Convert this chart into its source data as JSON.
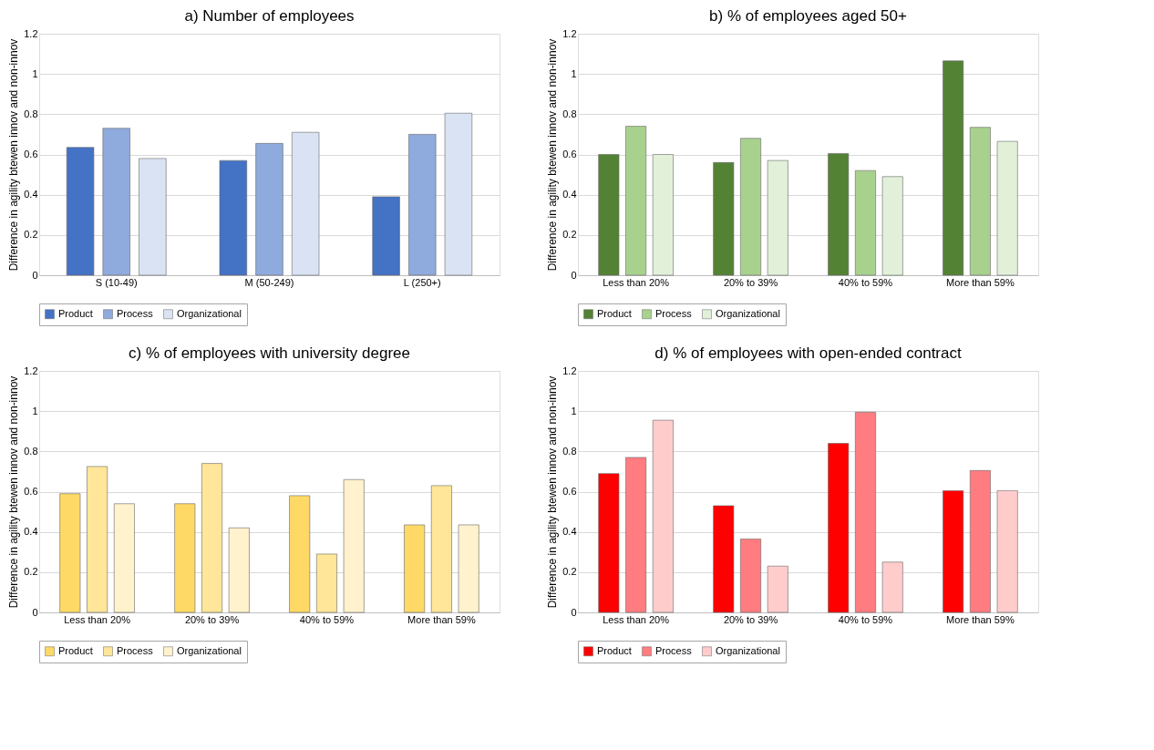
{
  "chart_data": [
    {
      "type": "bar",
      "title": "a) Number of employees",
      "ylabel": "Difference in agility btewen innov  and non-innov",
      "categories": [
        "S (10-49)",
        "M (50-249)",
        "L (250+)"
      ],
      "series": [
        {
          "name": "Product",
          "color": "#4472c4",
          "values": [
            0.635,
            0.57,
            0.39
          ]
        },
        {
          "name": "Process",
          "color": "#8faadc",
          "values": [
            0.73,
            0.655,
            0.7
          ]
        },
        {
          "name": "Organizational",
          "color": "#dae3f3",
          "values": [
            0.58,
            0.71,
            0.805
          ]
        }
      ],
      "ylim": [
        0,
        1.2
      ],
      "yticks": [
        0,
        0.2,
        0.4,
        0.6,
        0.8,
        1,
        1.2
      ],
      "grid": "y",
      "legend": "bottom"
    },
    {
      "type": "bar",
      "title": "b) % of employees aged 50+",
      "ylabel": "Difference in agility btewen innov  and non-innov",
      "categories": [
        "Less than 20%",
        "20% to 39%",
        "40% to 59%",
        "More than 59%"
      ],
      "series": [
        {
          "name": "Product",
          "color": "#548235",
          "values": [
            0.6,
            0.56,
            0.605,
            1.065
          ]
        },
        {
          "name": "Process",
          "color": "#a9d18e",
          "values": [
            0.74,
            0.68,
            0.52,
            0.735
          ]
        },
        {
          "name": "Organizational",
          "color": "#e2f0d9",
          "values": [
            0.6,
            0.57,
            0.49,
            0.665
          ]
        }
      ],
      "ylim": [
        0,
        1.2
      ],
      "yticks": [
        0,
        0.2,
        0.4,
        0.6,
        0.8,
        1,
        1.2
      ],
      "grid": "y",
      "legend": "bottom"
    },
    {
      "type": "bar",
      "title": "c) % of employees with university degree",
      "ylabel": "Difference in agility btewen innov  and non-innov",
      "categories": [
        "Less than 20%",
        "20% to 39%",
        "40% to 59%",
        "More than 59%"
      ],
      "series": [
        {
          "name": "Product",
          "color": "#ffd966",
          "values": [
            0.59,
            0.54,
            0.58,
            0.435
          ]
        },
        {
          "name": "Process",
          "color": "#ffe699",
          "values": [
            0.725,
            0.74,
            0.29,
            0.63
          ]
        },
        {
          "name": "Organizational",
          "color": "#fff2cc",
          "values": [
            0.54,
            0.42,
            0.66,
            0.435
          ]
        }
      ],
      "ylim": [
        0,
        1.2
      ],
      "yticks": [
        0,
        0.2,
        0.4,
        0.6,
        0.8,
        1,
        1.2
      ],
      "grid": "y",
      "legend": "bottom"
    },
    {
      "type": "bar",
      "title": "d) % of employees with open-ended contract",
      "ylabel": "Difference in agility btewen innov  and non-innov",
      "categories": [
        "Less than 20%",
        "20% to 39%",
        "40% to 59%",
        "More than 59%"
      ],
      "series": [
        {
          "name": "Product",
          "color": "#ff0000",
          "values": [
            0.69,
            0.53,
            0.84,
            0.605
          ]
        },
        {
          "name": "Process",
          "color": "#ff7c80",
          "values": [
            0.77,
            0.365,
            0.995,
            0.705
          ]
        },
        {
          "name": "Organizational",
          "color": "#ffcccc",
          "values": [
            0.955,
            0.23,
            0.25,
            0.605
          ]
        }
      ],
      "ylim": [
        0,
        1.2
      ],
      "yticks": [
        0,
        0.2,
        0.4,
        0.6,
        0.8,
        1,
        1.2
      ],
      "grid": "y",
      "legend": "bottom"
    }
  ]
}
